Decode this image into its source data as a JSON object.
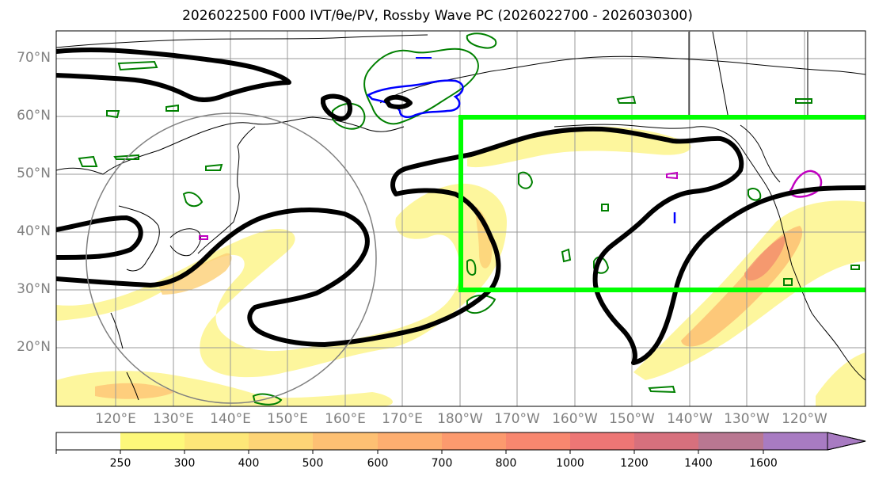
{
  "title": "2026022500 F000 IVT/θe/PV, Rossby Wave PC (2026022700 - 2026030300)",
  "lat_labels": [
    "70°N",
    "60°N",
    "50°N",
    "40°N",
    "30°N",
    "20°N"
  ],
  "lon_labels": [
    "120°E",
    "130°E",
    "140°E",
    "150°E",
    "160°E",
    "170°E",
    "180°W",
    "170°W",
    "160°W",
    "150°W",
    "140°W",
    "130°W",
    "120°W"
  ],
  "colorbar": {
    "ticks": [
      "250",
      "300",
      "400",
      "500",
      "600",
      "700",
      "800",
      "1000",
      "1200",
      "1400",
      "1600"
    ],
    "colors": [
      "#fdf87a",
      "#fde778",
      "#fdd476",
      "#fdc073",
      "#fdae70",
      "#fc9a6e",
      "#f8876f",
      "#ed7675",
      "#d7707d",
      "#b97791",
      "#a87bc2"
    ]
  },
  "colors": {
    "ivt_fill": "#fde68a",
    "ivt_core": "#f7a07a",
    "box": "#00ff00",
    "pv_contour": "#008000",
    "theta_contour": "#0000ff",
    "rossby_contour": "#000000",
    "magenta_contour": "#c000c0"
  }
}
